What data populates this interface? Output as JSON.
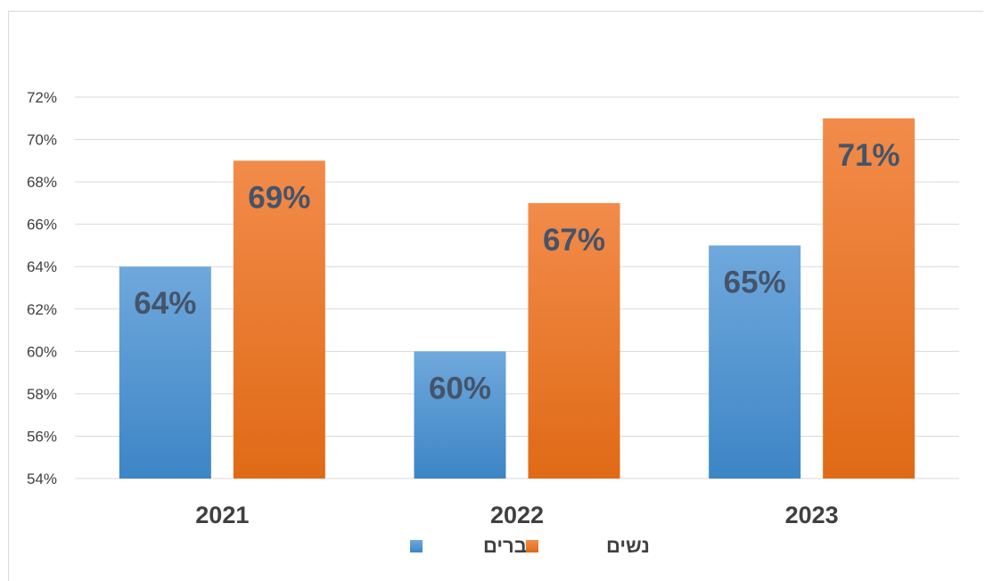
{
  "chart_data": {
    "type": "bar",
    "categories": [
      "2021",
      "2022",
      "2023"
    ],
    "series": [
      {
        "name": "גברים",
        "values": [
          64,
          60,
          65
        ],
        "labels": [
          "64%",
          "60%",
          "65%"
        ],
        "color": "#5b9bd5"
      },
      {
        "name": "נשים",
        "values": [
          69,
          67,
          71
        ],
        "labels": [
          "69%",
          "67%",
          "71%"
        ],
        "color": "#ed7d31"
      }
    ],
    "ylim": [
      54,
      72
    ],
    "yticks": [
      "54%",
      "56%",
      "58%",
      "60%",
      "62%",
      "64%",
      "66%",
      "68%",
      "70%",
      "72%"
    ],
    "grid": true,
    "legend_position": "bottom"
  }
}
